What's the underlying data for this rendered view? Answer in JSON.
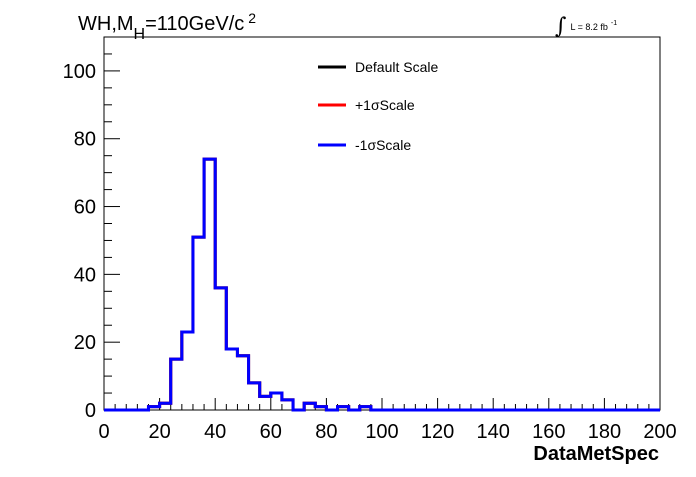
{
  "chart_data": {
    "type": "line",
    "title_parts": {
      "main": "WH,M",
      "sub": "H",
      "rest": "=110GeV/c",
      "sup": "2"
    },
    "lumi_parts": {
      "integral": "∫",
      "text": "L = 8.2 fb",
      "sup": "-1"
    },
    "xlabel": "DataMetSpec",
    "ylabel": "",
    "xlim": [
      0,
      200
    ],
    "ylim": [
      0,
      110
    ],
    "x_tick_labels": [
      "0",
      "20",
      "40",
      "60",
      "80",
      "100",
      "120",
      "140",
      "160",
      "180",
      "200"
    ],
    "y_tick_labels": [
      "0",
      "20",
      "40",
      "60",
      "80",
      "100"
    ],
    "bin_width": 4,
    "legend_position": "top-center",
    "grid": false,
    "series": [
      {
        "name": "Default Scale",
        "color": "#000000"
      },
      {
        "name": "+1σScale",
        "color": "#ff0000"
      },
      {
        "name": "-1σScale",
        "color": "#0000ff"
      }
    ],
    "histogram": {
      "bin_edges": [
        0,
        4,
        8,
        12,
        16,
        20,
        24,
        28,
        32,
        36,
        40,
        44,
        48,
        52,
        56,
        60,
        64,
        68,
        72,
        76,
        80,
        84,
        88,
        92,
        96,
        100,
        104,
        108,
        112,
        116,
        120,
        124,
        128,
        132,
        136,
        140,
        144,
        148,
        152,
        156,
        160,
        164,
        168,
        172,
        176,
        180,
        184,
        188,
        192,
        196,
        200
      ],
      "values": [
        0,
        0,
        0,
        0,
        1,
        2,
        15,
        23,
        51,
        74,
        36,
        18,
        16,
        8,
        4,
        5,
        3,
        0,
        2,
        1,
        0,
        1,
        0,
        1,
        0,
        0,
        0,
        0,
        0,
        0,
        0,
        0,
        0,
        0,
        0,
        0,
        0,
        0,
        0,
        0,
        0,
        0,
        0,
        0,
        0,
        0,
        0,
        0,
        0,
        0
      ]
    }
  }
}
